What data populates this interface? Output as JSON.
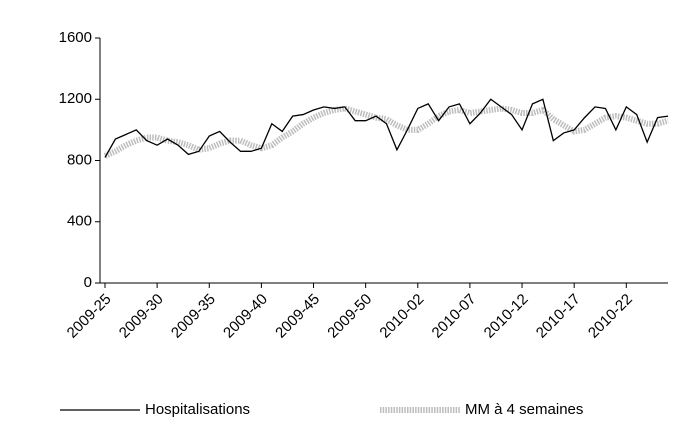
{
  "chart_data": {
    "type": "line",
    "categories": [
      "2009-25",
      null,
      null,
      null,
      null,
      "2009-30",
      null,
      null,
      null,
      null,
      "2009-35",
      null,
      null,
      null,
      null,
      "2009-40",
      null,
      null,
      null,
      null,
      "2009-45",
      null,
      null,
      null,
      null,
      "2009-50",
      null,
      null,
      null,
      null,
      "2010-02",
      null,
      null,
      null,
      null,
      "2010-07",
      null,
      null,
      null,
      null,
      "2010-12",
      null,
      null,
      null,
      null,
      "2010-17",
      null,
      null,
      null,
      null,
      "2010-22",
      null,
      null,
      null,
      null
    ],
    "series": [
      {
        "name": "Hospitalisations",
        "color": "#000000",
        "values": [
          820,
          940,
          970,
          1000,
          930,
          900,
          940,
          900,
          840,
          860,
          960,
          990,
          920,
          860,
          860,
          880,
          1040,
          990,
          1090,
          1100,
          1130,
          1150,
          1140,
          1150,
          1060,
          1060,
          1090,
          1040,
          870,
          1000,
          1140,
          1170,
          1060,
          1150,
          1170,
          1040,
          1110,
          1200,
          1150,
          1100,
          1000,
          1170,
          1200,
          930,
          980,
          1000,
          1080,
          1150,
          1140,
          1000,
          1150,
          1100,
          920,
          1080,
          1090
        ]
      },
      {
        "name": "MM à 4 semaines",
        "color": "#bdbdbd",
        "values": [
          830,
          860,
          900,
          930,
          950,
          950,
          930,
          920,
          900,
          870,
          880,
          910,
          930,
          930,
          900,
          880,
          900,
          950,
          990,
          1040,
          1080,
          1110,
          1130,
          1140,
          1120,
          1100,
          1080,
          1070,
          1030,
          1000,
          1000,
          1040,
          1090,
          1120,
          1130,
          1110,
          1120,
          1130,
          1140,
          1130,
          1110,
          1110,
          1130,
          1070,
          1030,
          990,
          1000,
          1040,
          1080,
          1090,
          1080,
          1060,
          1040,
          1040,
          1060
        ]
      }
    ],
    "ylim": [
      0,
      1600
    ],
    "yticks": [
      0,
      400,
      800,
      1200,
      1600
    ],
    "grid": false
  }
}
